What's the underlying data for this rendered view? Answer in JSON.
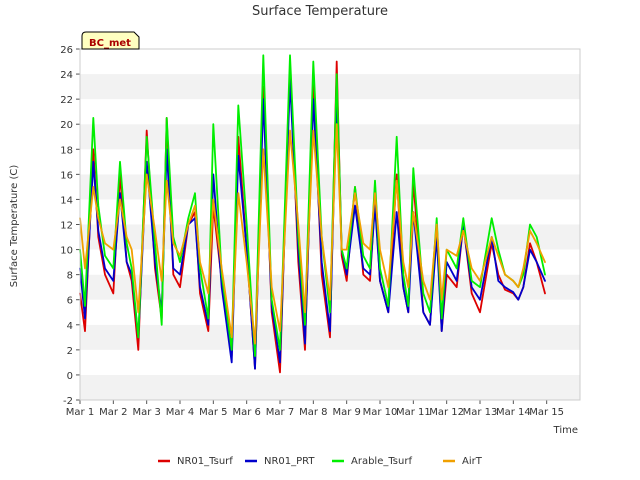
{
  "chart_data": {
    "type": "line",
    "title": "Surface Temperature",
    "xlabel": "Time",
    "ylabel": "Surface Temperature (C)",
    "xlim": [
      0,
      15
    ],
    "ylim": [
      -2,
      26
    ],
    "x_ticks": [
      {
        "value": 0,
        "label": "Mar 1"
      },
      {
        "value": 1,
        "label": "Mar 2"
      },
      {
        "value": 2,
        "label": "Mar 3"
      },
      {
        "value": 3,
        "label": "Mar 4"
      },
      {
        "value": 4,
        "label": "Mar 5"
      },
      {
        "value": 5,
        "label": "Mar 6"
      },
      {
        "value": 6,
        "label": "Mar 7"
      },
      {
        "value": 7,
        "label": "Mar 8"
      },
      {
        "value": 8,
        "label": "Mar 9"
      },
      {
        "value": 9,
        "label": "Mar 10"
      },
      {
        "value": 10,
        "label": "Mar 11"
      },
      {
        "value": 11,
        "label": "Mar 12"
      },
      {
        "value": 12,
        "label": "Mar 13"
      },
      {
        "value": 13,
        "label": "Mar 14"
      },
      {
        "value": 14,
        "label": "Mar 15"
      }
    ],
    "y_ticks": [
      -2,
      0,
      2,
      4,
      6,
      8,
      10,
      12,
      14,
      16,
      18,
      20,
      22,
      24,
      26
    ],
    "grid": "horizontal bands",
    "legend_position": "bottom",
    "annotation": "BC_met",
    "x_unit": "days since Mar 1",
    "series": [
      {
        "name": "NR01_Tsurf",
        "color": "#dd0000",
        "x": [
          0,
          0.15,
          0.4,
          0.55,
          0.75,
          1.0,
          1.2,
          1.4,
          1.55,
          1.75,
          2.0,
          2.25,
          2.45,
          2.6,
          2.8,
          3.0,
          3.25,
          3.45,
          3.6,
          3.85,
          4.0,
          4.25,
          4.55,
          4.75,
          5.0,
          5.25,
          5.5,
          5.75,
          6.0,
          6.3,
          6.55,
          6.75,
          7.0,
          7.25,
          7.5,
          7.7,
          7.85,
          8.0,
          8.25,
          8.5,
          8.7,
          8.85,
          9.0,
          9.25,
          9.5,
          9.7,
          9.85,
          10.0,
          10.3,
          10.5,
          10.7,
          10.85,
          11.0,
          11.3,
          11.5,
          11.75,
          12.0,
          12.35,
          12.55,
          12.75,
          13.0,
          13.15,
          13.3,
          13.5,
          13.7,
          13.95
        ],
        "y": [
          6.5,
          3.5,
          18.0,
          11.0,
          8.0,
          6.5,
          16.0,
          9.0,
          7.5,
          2.0,
          19.5,
          8.5,
          4.5,
          20.5,
          8.0,
          7.0,
          12.0,
          13.0,
          6.5,
          3.5,
          13.5,
          7.5,
          1.5,
          19.0,
          10.0,
          0.5,
          23.0,
          5.0,
          0.2,
          24.5,
          9.0,
          2.0,
          23.5,
          8.0,
          3.0,
          25.0,
          9.5,
          7.5,
          15.0,
          8.0,
          7.5,
          14.0,
          7.5,
          5.0,
          16.0,
          7.0,
          5.0,
          15.5,
          5.0,
          4.0,
          12.0,
          3.5,
          8.0,
          7.0,
          12.0,
          6.5,
          5.0,
          10.5,
          8.0,
          6.8,
          6.5,
          6.0,
          7.0,
          10.5,
          9.0,
          6.5
        ]
      },
      {
        "name": "NR01_PRT",
        "color": "#0000cc",
        "x": [
          0,
          0.15,
          0.4,
          0.55,
          0.75,
          1.0,
          1.2,
          1.4,
          1.55,
          1.75,
          2.0,
          2.25,
          2.45,
          2.6,
          2.8,
          3.0,
          3.25,
          3.45,
          3.6,
          3.85,
          4.0,
          4.25,
          4.55,
          4.75,
          5.0,
          5.25,
          5.5,
          5.75,
          6.0,
          6.3,
          6.55,
          6.75,
          7.0,
          7.25,
          7.5,
          7.7,
          7.85,
          8.0,
          8.25,
          8.5,
          8.7,
          8.85,
          9.0,
          9.25,
          9.5,
          9.7,
          9.85,
          10.0,
          10.3,
          10.5,
          10.7,
          10.85,
          11.0,
          11.3,
          11.5,
          11.75,
          12.0,
          12.35,
          12.55,
          12.75,
          13.0,
          13.15,
          13.3,
          13.5,
          13.7,
          13.95
        ],
        "y": [
          8.5,
          4.5,
          17.0,
          11.5,
          8.5,
          7.5,
          14.5,
          9.0,
          8.0,
          3.0,
          17.0,
          9.0,
          5.0,
          18.0,
          8.5,
          8.0,
          12.0,
          12.5,
          7.0,
          4.0,
          16.0,
          7.0,
          1.0,
          17.5,
          10.0,
          0.5,
          22.0,
          5.5,
          1.0,
          23.5,
          10.0,
          2.5,
          22.0,
          9.0,
          3.5,
          22.5,
          10.0,
          8.0,
          13.5,
          8.5,
          8.0,
          13.5,
          7.5,
          5.0,
          13.0,
          7.0,
          5.0,
          13.0,
          5.0,
          4.0,
          11.0,
          3.5,
          9.0,
          7.5,
          12.0,
          7.0,
          6.0,
          11.0,
          7.5,
          7.0,
          6.6,
          6.0,
          7.0,
          10.0,
          9.0,
          7.5
        ]
      },
      {
        "name": "Arable_Tsurf",
        "color": "#00ee00",
        "x": [
          0,
          0.15,
          0.4,
          0.55,
          0.75,
          1.0,
          1.2,
          1.4,
          1.55,
          1.75,
          2.0,
          2.25,
          2.45,
          2.6,
          2.8,
          3.0,
          3.25,
          3.45,
          3.6,
          3.85,
          4.0,
          4.25,
          4.55,
          4.75,
          5.0,
          5.25,
          5.5,
          5.75,
          6.0,
          6.3,
          6.55,
          6.75,
          7.0,
          7.25,
          7.5,
          7.7,
          7.85,
          8.0,
          8.25,
          8.5,
          8.7,
          8.85,
          9.0,
          9.25,
          9.5,
          9.7,
          9.85,
          10.0,
          10.3,
          10.5,
          10.7,
          10.85,
          11.0,
          11.3,
          11.5,
          11.75,
          12.0,
          12.35,
          12.55,
          12.75,
          13.0,
          13.15,
          13.3,
          13.5,
          13.7,
          13.95
        ],
        "y": [
          10.0,
          5.5,
          20.5,
          13.5,
          9.5,
          8.5,
          17.0,
          10.5,
          8.5,
          3.0,
          19.0,
          10.5,
          4.0,
          20.5,
          11.0,
          9.0,
          12.5,
          14.5,
          8.5,
          4.5,
          20.0,
          8.0,
          2.0,
          21.5,
          12.0,
          1.5,
          25.5,
          6.0,
          2.0,
          25.5,
          11.0,
          4.0,
          25.0,
          11.0,
          5.0,
          24.0,
          10.0,
          8.5,
          15.0,
          9.5,
          8.5,
          15.5,
          8.5,
          5.5,
          19.0,
          8.0,
          5.5,
          16.5,
          6.5,
          5.0,
          12.5,
          4.5,
          10.0,
          8.5,
          12.5,
          7.5,
          7.0,
          12.5,
          10.0,
          8.0,
          7.5,
          7.0,
          8.0,
          12.0,
          11.0,
          8.0
        ]
      },
      {
        "name": "AirT",
        "color": "#f0a000",
        "x": [
          0,
          0.15,
          0.4,
          0.55,
          0.75,
          1.0,
          1.2,
          1.4,
          1.55,
          1.75,
          2.0,
          2.25,
          2.45,
          2.6,
          2.8,
          3.0,
          3.25,
          3.45,
          3.6,
          3.85,
          4.0,
          4.25,
          4.55,
          4.75,
          5.0,
          5.25,
          5.5,
          5.75,
          6.0,
          6.3,
          6.55,
          6.75,
          7.0,
          7.25,
          7.5,
          7.7,
          7.85,
          8.0,
          8.25,
          8.5,
          8.7,
          8.85,
          9.0,
          9.25,
          9.5,
          9.7,
          9.85,
          10.0,
          10.3,
          10.5,
          10.7,
          10.85,
          11.0,
          11.3,
          11.5,
          11.75,
          12.0,
          12.35,
          12.55,
          12.75,
          13.0,
          13.15,
          13.3,
          13.5,
          13.7,
          13.95
        ],
        "y": [
          12.5,
          8.5,
          15.0,
          12.5,
          10.5,
          10.0,
          14.0,
          11.0,
          10.0,
          5.0,
          16.0,
          11.5,
          7.5,
          15.5,
          10.5,
          9.5,
          12.0,
          13.5,
          9.0,
          6.5,
          14.0,
          8.5,
          3.0,
          14.5,
          9.0,
          2.5,
          18.0,
          7.0,
          3.5,
          19.5,
          12.0,
          5.0,
          19.5,
          11.0,
          6.0,
          20.0,
          10.0,
          10.0,
          14.5,
          10.5,
          10.0,
          14.5,
          10.0,
          7.0,
          15.5,
          9.0,
          7.0,
          13.0,
          7.5,
          6.0,
          12.0,
          6.0,
          10.0,
          9.5,
          11.5,
          8.5,
          7.5,
          11.0,
          9.5,
          8.0,
          7.5,
          7.0,
          8.5,
          11.5,
          10.5,
          9.0
        ]
      }
    ]
  }
}
